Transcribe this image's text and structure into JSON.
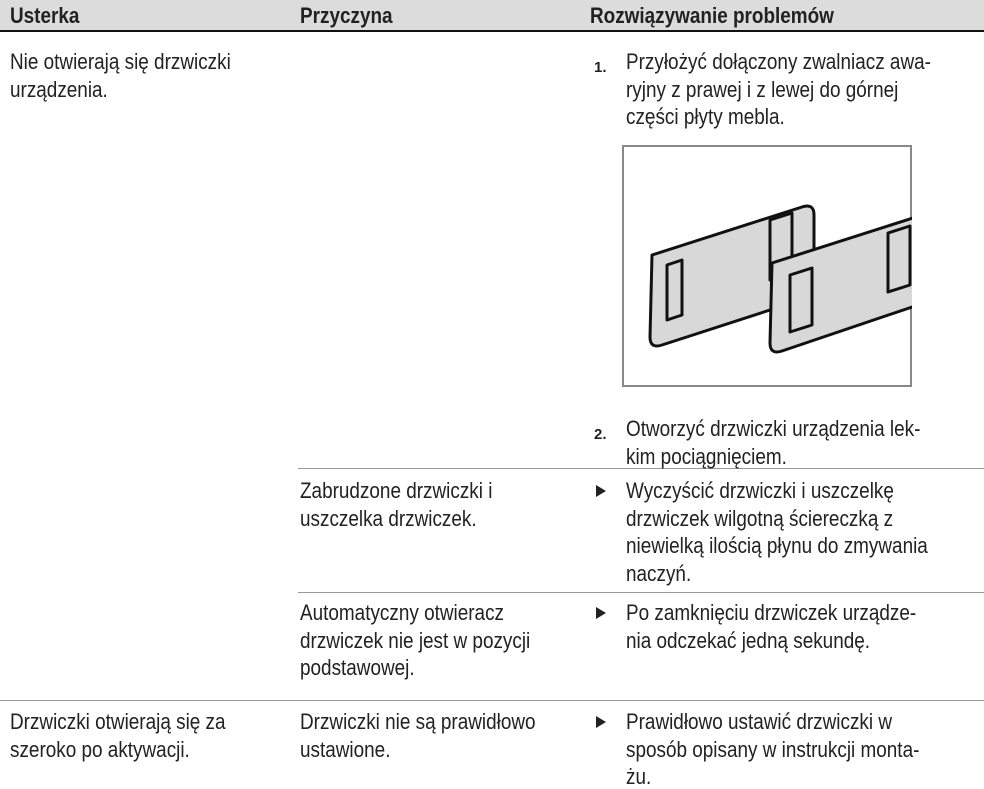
{
  "header": {
    "fault": "Usterka",
    "cause": "Przyczyna",
    "remedy": "Rozwiązywanie problemów"
  },
  "rows": [
    {
      "fault": [
        "Nie otwierają się drzwiczki",
        "urządzenia."
      ],
      "causes": [
        {
          "steps": [
            {
              "marker": "1.",
              "lines": [
                "Przyłożyć dołączony zwalniacz awa-",
                "ryjny z prawej i z lewej do górnej",
                "części płyty mebla."
              ]
            },
            {
              "marker": "2.",
              "lines": [
                "Otworzyć drzwiczki urządzenia lek-",
                "kim pociągnięciem."
              ]
            }
          ]
        },
        {
          "cause": [
            "Zabrudzone drzwiczki i",
            "uszczelka drzwiczek."
          ],
          "remedy": [
            "Wyczyścić drzwiczki i uszczelkę",
            "drzwiczek wilgotną ściereczką z",
            "niewielką ilością płynu do zmywania",
            "naczyń."
          ]
        },
        {
          "cause": [
            "Automatyczny otwieracz",
            "drzwiczek nie jest w pozycji",
            "podstawowej."
          ],
          "remedy": [
            "Po zamknięciu drzwiczek urządze-",
            "nia odczekać jedną sekundę."
          ]
        }
      ]
    },
    {
      "fault": [
        "Drzwiczki otwierają się za",
        "szeroko po aktywacji."
      ],
      "causes": [
        {
          "cause": [
            "Drzwiczki nie są prawidłowo",
            "ustawione."
          ],
          "remedy": [
            "Prawidłowo ustawić drzwiczki w",
            "sposób opisany w instrukcji monta-",
            "żu."
          ]
        }
      ]
    }
  ]
}
